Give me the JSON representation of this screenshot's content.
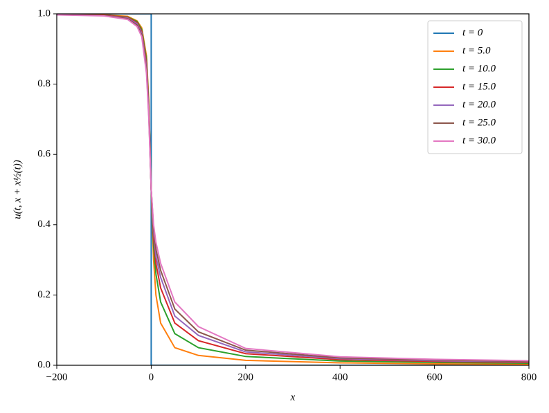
{
  "chart_data": {
    "type": "line",
    "xlabel": "x",
    "ylabel": "u(t, x + x½(t))",
    "xlim": [
      -200,
      800
    ],
    "ylim": [
      0,
      1
    ],
    "xticks": [
      {
        "value": -200,
        "label": "−200"
      },
      0,
      200,
      400,
      600,
      800
    ],
    "yticks": [
      {
        "value": 0,
        "label": "0.0"
      },
      0.2,
      0.4,
      0.6,
      0.8,
      {
        "value": 1,
        "label": "1.0"
      }
    ],
    "legend": "upper right",
    "series": [
      {
        "name": "t = 0",
        "color": "#1f77b4",
        "x": [
          -200,
          0,
          0,
          800
        ],
        "values": [
          1,
          1,
          0,
          0
        ]
      },
      {
        "name": "t = 5.0",
        "color": "#ff7f0e",
        "x": [
          -200,
          -100,
          -50,
          -30,
          -20,
          -10,
          -5,
          0,
          5,
          10,
          20,
          50,
          100,
          200,
          400,
          600,
          800
        ],
        "values": [
          0.998,
          0.997,
          0.993,
          0.98,
          0.96,
          0.88,
          0.75,
          0.5,
          0.3,
          0.2,
          0.12,
          0.05,
          0.028,
          0.014,
          0.007,
          0.004,
          0.003
        ]
      },
      {
        "name": "t = 10.0",
        "color": "#2ca02c",
        "x": [
          -200,
          -100,
          -50,
          -30,
          -20,
          -10,
          -5,
          0,
          5,
          10,
          20,
          50,
          100,
          200,
          400,
          600,
          800
        ],
        "values": [
          0.998,
          0.996,
          0.991,
          0.978,
          0.955,
          0.87,
          0.74,
          0.5,
          0.34,
          0.26,
          0.18,
          0.09,
          0.05,
          0.025,
          0.012,
          0.008,
          0.006
        ]
      },
      {
        "name": "t = 15.0",
        "color": "#d62728",
        "x": [
          -200,
          -100,
          -50,
          -30,
          -20,
          -10,
          -5,
          0,
          5,
          10,
          20,
          50,
          100,
          200,
          400,
          600,
          800
        ],
        "values": [
          0.998,
          0.996,
          0.99,
          0.975,
          0.95,
          0.86,
          0.73,
          0.5,
          0.36,
          0.29,
          0.22,
          0.12,
          0.07,
          0.033,
          0.016,
          0.011,
          0.008
        ]
      },
      {
        "name": "t = 20.0",
        "color": "#9467bd",
        "x": [
          -200,
          -100,
          -50,
          -30,
          -20,
          -10,
          -5,
          0,
          5,
          10,
          20,
          50,
          100,
          200,
          400,
          600,
          800
        ],
        "values": [
          0.998,
          0.995,
          0.988,
          0.972,
          0.945,
          0.85,
          0.72,
          0.5,
          0.38,
          0.31,
          0.25,
          0.14,
          0.085,
          0.038,
          0.019,
          0.013,
          0.01
        ]
      },
      {
        "name": "t = 25.0",
        "color": "#8c564b",
        "x": [
          -200,
          -100,
          -50,
          -30,
          -20,
          -10,
          -5,
          0,
          5,
          10,
          20,
          50,
          100,
          200,
          400,
          600,
          800
        ],
        "values": [
          0.998,
          0.995,
          0.986,
          0.968,
          0.94,
          0.84,
          0.71,
          0.5,
          0.39,
          0.33,
          0.27,
          0.16,
          0.095,
          0.043,
          0.021,
          0.015,
          0.011
        ]
      },
      {
        "name": "t = 30.0",
        "color": "#e377c2",
        "x": [
          -200,
          -100,
          -50,
          -30,
          -20,
          -10,
          -5,
          0,
          5,
          10,
          20,
          50,
          100,
          200,
          400,
          600,
          800
        ],
        "values": [
          0.997,
          0.994,
          0.984,
          0.964,
          0.935,
          0.83,
          0.7,
          0.5,
          0.4,
          0.35,
          0.29,
          0.18,
          0.11,
          0.048,
          0.024,
          0.017,
          0.013
        ]
      }
    ]
  }
}
